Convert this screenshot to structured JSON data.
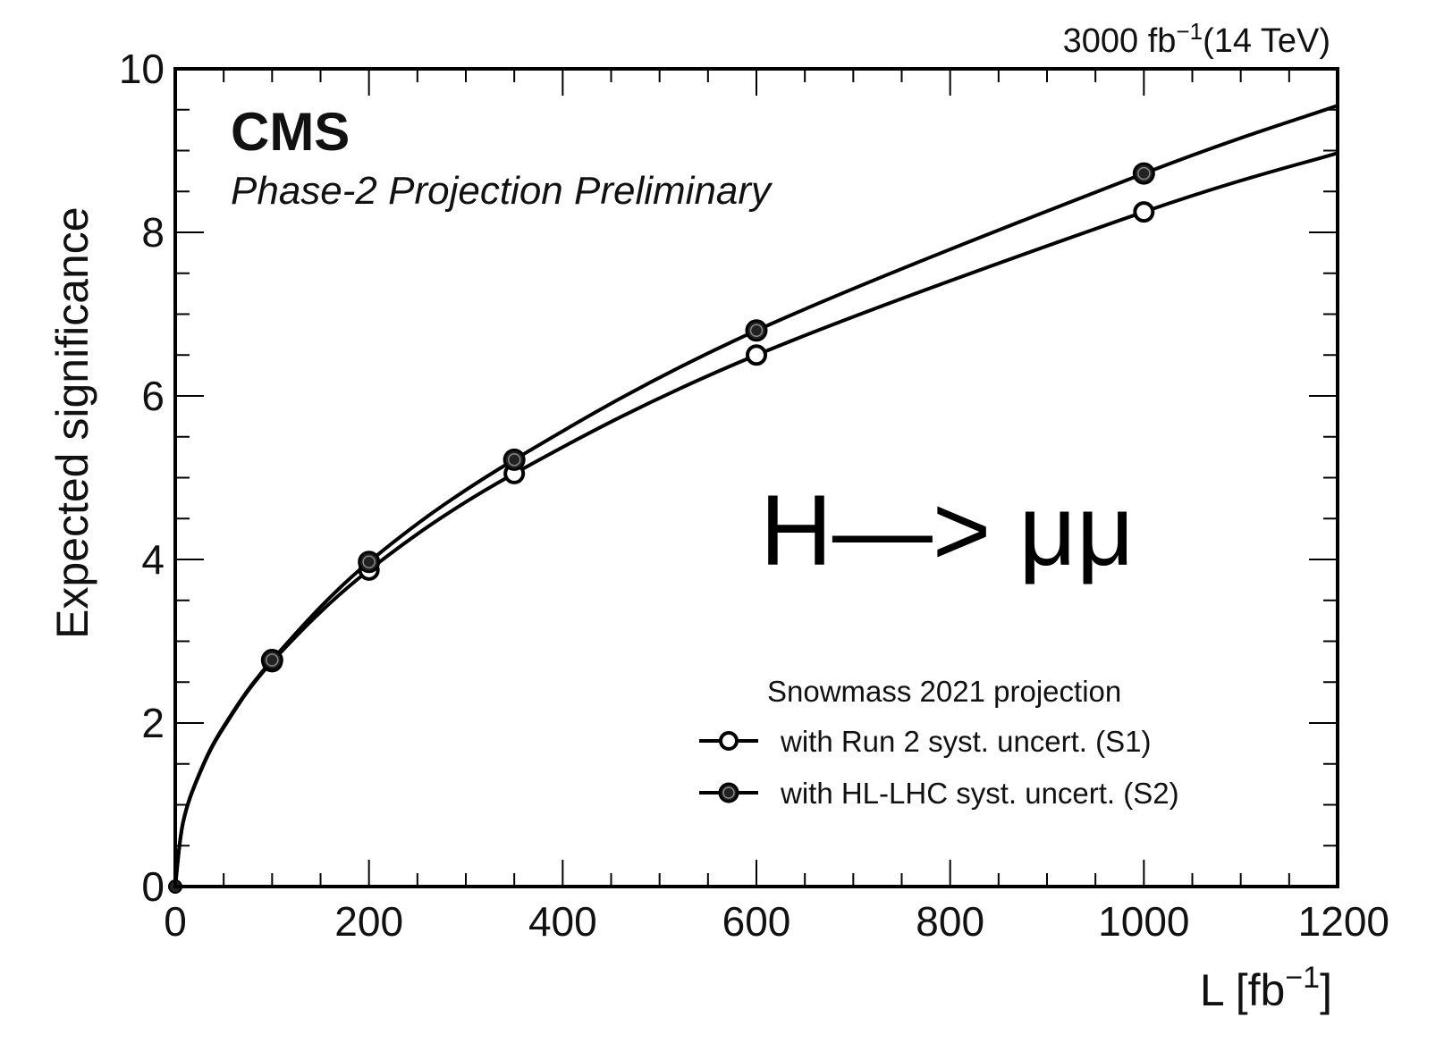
{
  "chart_data": {
    "type": "line",
    "xlabel": "L [fb",
    "xlabel_sup": "−1",
    "xlabel_end": "]",
    "ylabel": "Expected significance",
    "xlim": [
      0,
      1200
    ],
    "ylim": [
      0,
      10
    ],
    "x_ticks": [
      "0",
      "200",
      "400",
      "600",
      "800",
      "1000",
      "1200"
    ],
    "y_ticks": [
      "0",
      "2",
      "4",
      "6",
      "8",
      "10"
    ],
    "lumi_label": "3000 fb",
    "lumi_sup": "−1",
    "lumi_end": "(14 TeV)",
    "experiment": "CMS",
    "subtitle": "Phase-2 Projection Preliminary",
    "annotation": "H—> μμ",
    "legend": {
      "title": "Snowmass 2021 projection",
      "placement": "bottom-right"
    },
    "series": [
      {
        "name": "with Run 2 syst. uncert. (S1)",
        "marker": "open-circle",
        "x": [
          100,
          200,
          350,
          600,
          1000
        ],
        "y": [
          2.75,
          3.87,
          5.05,
          6.5,
          8.25
        ],
        "curve_end": 8.97
      },
      {
        "name": "with HL-LHC syst. uncert. (S2)",
        "marker": "filled-circle",
        "x": [
          100,
          200,
          350,
          600,
          1000
        ],
        "y": [
          2.77,
          3.97,
          5.22,
          6.8,
          8.72
        ],
        "curve_end": 9.55
      }
    ]
  }
}
